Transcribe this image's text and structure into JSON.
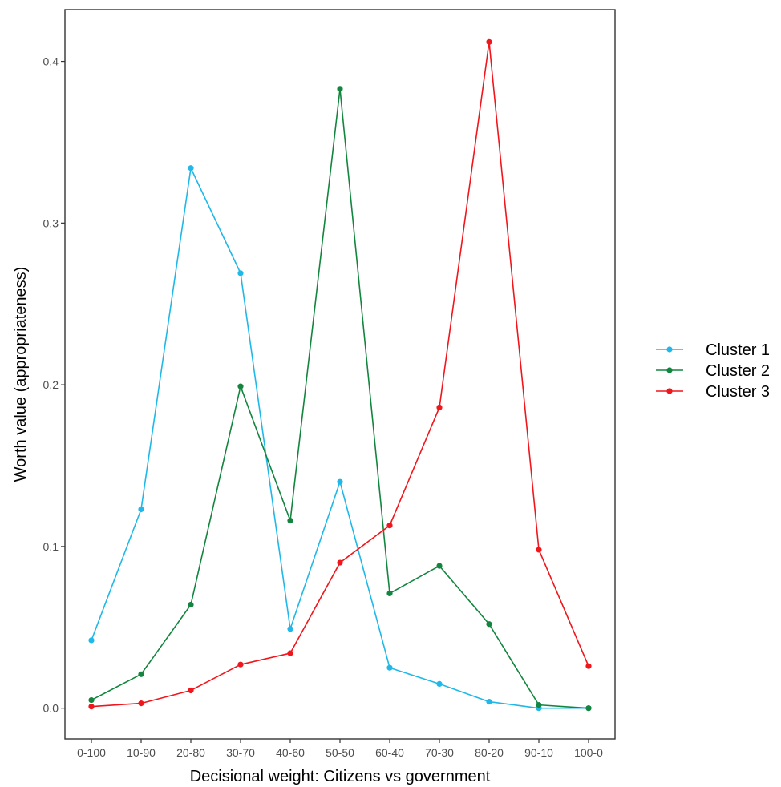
{
  "chart_data": {
    "type": "line",
    "title": "",
    "xlabel": "Decisional weight: Citizens vs government",
    "ylabel": "Worth value (appropriateness)",
    "categories": [
      "0-100",
      "10-90",
      "20-80",
      "30-70",
      "40-60",
      "50-50",
      "60-40",
      "70-30",
      "80-20",
      "90-10",
      "100-0"
    ],
    "ylim": [
      -0.019,
      0.432
    ],
    "yticks": [
      0.0,
      0.1,
      0.2,
      0.3,
      0.4
    ],
    "ytick_labels": [
      "0.0",
      "0.1",
      "0.2",
      "0.3",
      "0.4"
    ],
    "grid": false,
    "legend_position": "right",
    "series": [
      {
        "name": "Cluster 1",
        "color": "#1fb8e8",
        "values": [
          0.042,
          0.123,
          0.334,
          0.269,
          0.049,
          0.14,
          0.025,
          0.015,
          0.004,
          0.0,
          0.0
        ]
      },
      {
        "name": "Cluster 2",
        "color": "#13853f",
        "values": [
          0.005,
          0.021,
          0.064,
          0.199,
          0.116,
          0.383,
          0.071,
          0.088,
          0.052,
          0.002,
          0.0
        ]
      },
      {
        "name": "Cluster 3",
        "color": "#f0161c",
        "values": [
          0.001,
          0.003,
          0.011,
          0.027,
          0.034,
          0.09,
          0.113,
          0.186,
          0.412,
          0.098,
          0.026
        ]
      }
    ]
  }
}
